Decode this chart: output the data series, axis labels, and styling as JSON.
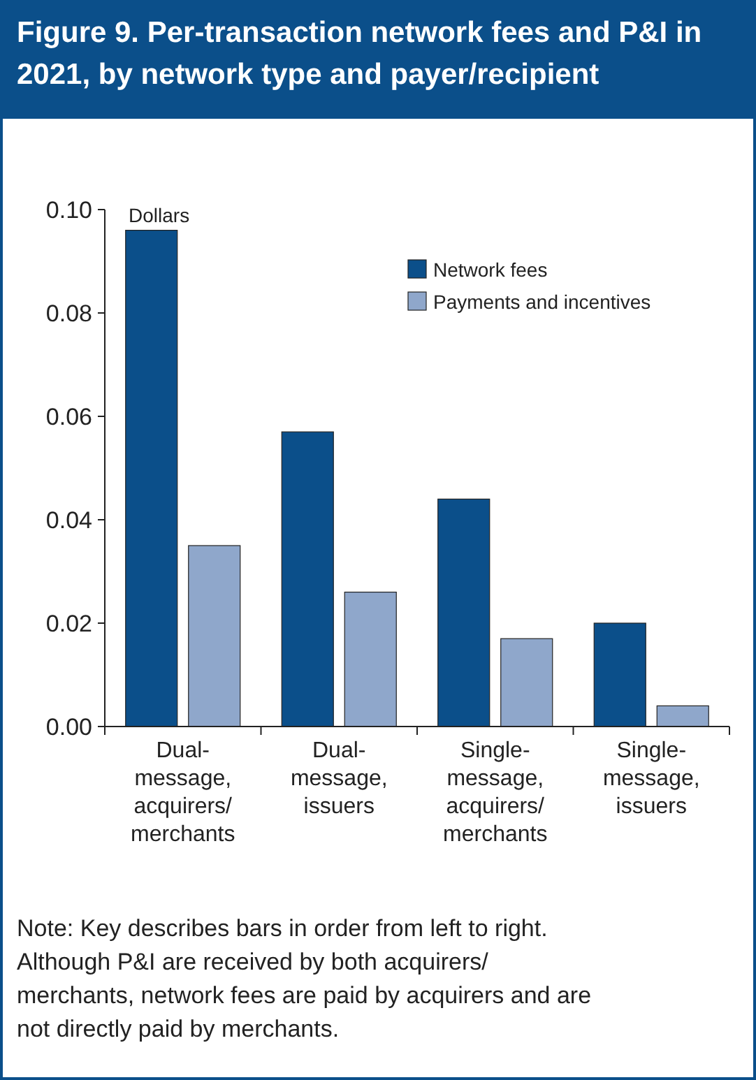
{
  "chart_data": {
    "type": "bar",
    "title": "Figure 9. Per-transaction network fees and P&I in 2021, by network type and payer/recipient",
    "ylabel": "Dollars",
    "categories": [
      "Dual-\nmessage,\nacquirers/\nmerchants",
      "Dual-\nmessage,\nissuers",
      "Single-\nmessage,\nacquirers/\nmerchants",
      "Single-\nmessage,\nissuers"
    ],
    "series": [
      {
        "name": "Network fees",
        "color": "#0b4f8a",
        "values": [
          0.096,
          0.057,
          0.044,
          0.02
        ]
      },
      {
        "name": "Payments and incentives",
        "color": "#8fa7cb",
        "values": [
          0.035,
          0.026,
          0.017,
          0.004
        ]
      }
    ],
    "ylim": [
      0,
      0.1
    ],
    "yticks": [
      {
        "value": 0,
        "label": "0.00"
      },
      {
        "value": 0.02,
        "label": "0.02"
      },
      {
        "value": 0.04,
        "label": "0.04"
      },
      {
        "value": 0.06,
        "label": "0.06"
      },
      {
        "value": 0.08,
        "label": "0.08"
      },
      {
        "value": 0.1,
        "label": "0.10"
      }
    ],
    "grid": false,
    "legend": "top right",
    "annotations": [
      "Note: Key describes bars in order from left to right.\nAlthough P&I are received by both acquirers/ merchants, network fees are paid by acquirers and are not directly paid by merchants."
    ]
  }
}
